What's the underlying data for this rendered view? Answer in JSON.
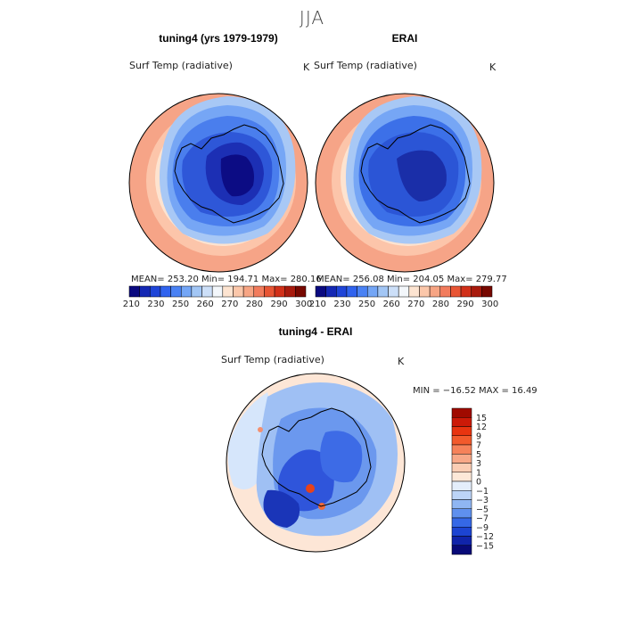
{
  "figure_title": "JJA",
  "chart_data": [
    {
      "type": "heatmap",
      "projection": "south-polar-stereographic",
      "title": "tuning4 (yrs 1979-1979)",
      "variable": "Surf Temp (radiative)",
      "units": "K",
      "stats": "MEAN= 253.20   Min= 194.71   Max= 280.16",
      "colorbar_orientation": "horizontal",
      "colorbar_ticks": [
        "210",
        "230",
        "250",
        "260",
        "270",
        "280",
        "290",
        "300"
      ],
      "colorbar_colors": [
        "#0a0a80",
        "#1428b4",
        "#1f45d8",
        "#3063ee",
        "#4a82f4",
        "#74a6f6",
        "#a2c6f5",
        "#ccdff8",
        "#f3f7fb",
        "#fde4d1",
        "#fbc7aa",
        "#f7a584",
        "#f27c5d",
        "#e85534",
        "#d13019",
        "#a81a0d",
        "#770800"
      ],
      "field_ranges": {
        "coast_interior": [
          210,
          235
        ],
        "sea_ice_zone": [
          245,
          265
        ],
        "open_ocean": [
          270,
          280
        ]
      }
    },
    {
      "type": "heatmap",
      "projection": "south-polar-stereographic",
      "title": "ERAI",
      "variable": "Surf Temp (radiative)",
      "units": "K",
      "stats": "MEAN= 256.08   Min= 204.05   Max= 279.77",
      "colorbar_orientation": "horizontal",
      "colorbar_ticks": [
        "210",
        "230",
        "250",
        "260",
        "270",
        "280",
        "290",
        "300"
      ],
      "colorbar_colors": [
        "#0a0a80",
        "#1428b4",
        "#1f45d8",
        "#3063ee",
        "#4a82f4",
        "#74a6f6",
        "#a2c6f5",
        "#ccdff8",
        "#f3f7fb",
        "#fde4d1",
        "#fbc7aa",
        "#f7a584",
        "#f27c5d",
        "#e85534",
        "#d13019",
        "#a81a0d",
        "#770800"
      ],
      "field_ranges": {
        "coast_interior": [
          215,
          240
        ],
        "sea_ice_zone": [
          248,
          265
        ],
        "open_ocean": [
          270,
          280
        ]
      }
    },
    {
      "type": "heatmap",
      "projection": "south-polar-stereographic",
      "title": "tuning4 - ERAI",
      "variable": "Surf Temp (radiative)",
      "units": "K",
      "stats": "MIN = −16.52  MAX =  16.49",
      "colorbar_orientation": "vertical",
      "colorbar_ticks": [
        "15",
        "12",
        "9",
        "7",
        "5",
        "3",
        "1",
        "0",
        "−1",
        "−3",
        "−5",
        "−7",
        "−9",
        "−12",
        "−15"
      ],
      "colorbar_colors": [
        "#a00a00",
        "#cc1a08",
        "#e83410",
        "#f25a2c",
        "#f6825a",
        "#f8a888",
        "#fbcdb4",
        "#fde8d8",
        "#e4eefb",
        "#bcd4f7",
        "#8fb6f3",
        "#5f90ee",
        "#3568e6",
        "#1c44d2",
        "#1024aa",
        "#080a78"
      ],
      "field_ranges": {
        "interior": [
          -12,
          -3
        ],
        "ocean": [
          -1,
          1
        ]
      }
    }
  ]
}
